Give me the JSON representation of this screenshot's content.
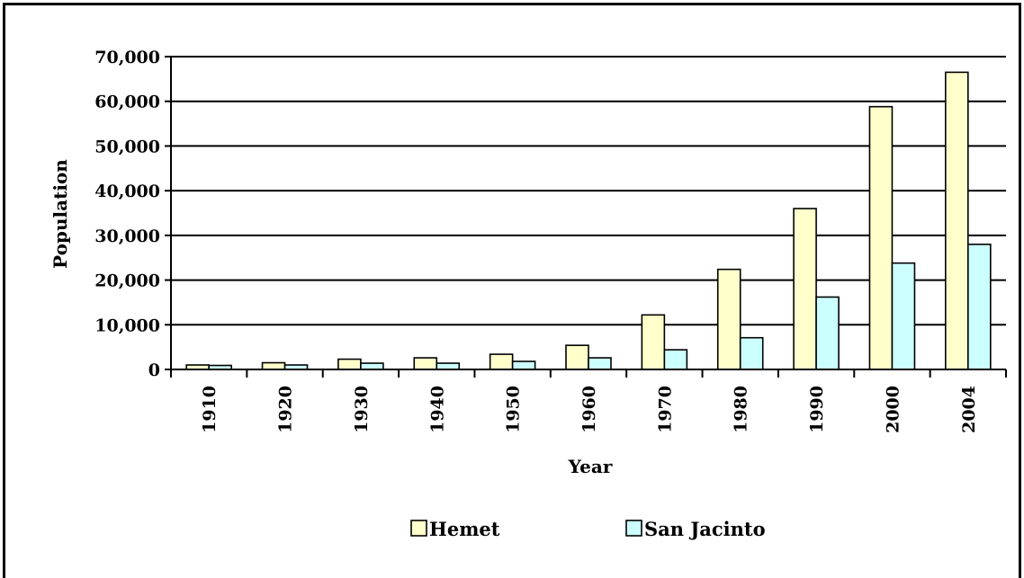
{
  "chart_data": {
    "type": "bar",
    "xlabel": "Year",
    "ylabel": "Population",
    "categories": [
      "1910",
      "1920",
      "1930",
      "1940",
      "1950",
      "1960",
      "1970",
      "1980",
      "1990",
      "2000",
      "2004"
    ],
    "series": [
      {
        "name": "Hemet",
        "color": "#FFFFCC",
        "values": [
          1000,
          1500,
          2300,
          2600,
          3400,
          5400,
          12200,
          22400,
          36000,
          58800,
          66500
        ]
      },
      {
        "name": "San Jacinto",
        "color": "#CCFFFF",
        "values": [
          900,
          1000,
          1400,
          1400,
          1800,
          2600,
          4400,
          7100,
          16200,
          23800,
          28000
        ]
      }
    ],
    "ylim": [
      0,
      70000
    ],
    "yticks": [
      0,
      10000,
      20000,
      30000,
      40000,
      50000,
      60000,
      70000
    ],
    "ytick_labels": [
      "0",
      "10,000",
      "20,000",
      "30,000",
      "40,000",
      "50,000",
      "60,000",
      "70,000"
    ],
    "grid": true,
    "legend_position": "bottom"
  }
}
